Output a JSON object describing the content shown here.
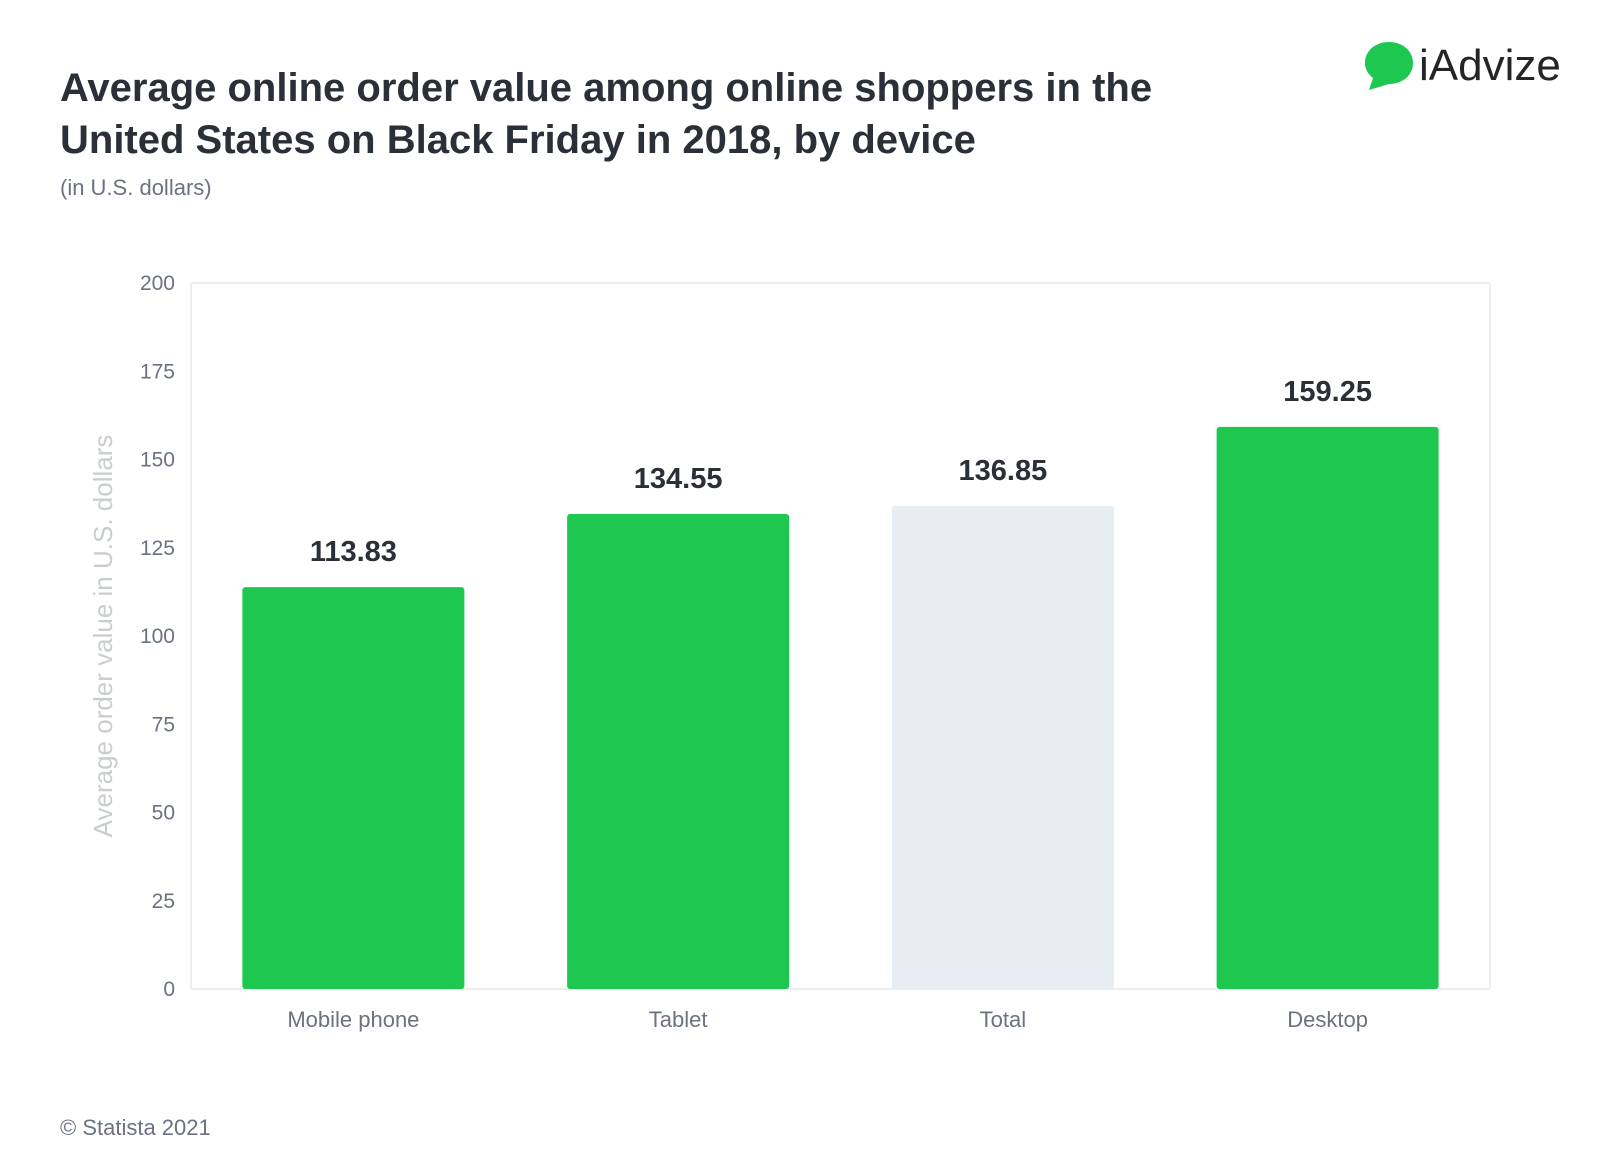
{
  "title": "Average online order value among online shoppers in the United States on Black Friday in 2018, by device",
  "subtitle": "(in U.S. dollars)",
  "brand": {
    "name": "iAdvize",
    "icon": "speech-bubble-icon",
    "color": "#1ec850"
  },
  "footer": "© Statista 2021",
  "colors": {
    "bar": "#1ec850",
    "bar_highlight": "#e8ecf3",
    "text": "#2b2f38",
    "axis": "#6b7280"
  },
  "chart_data": {
    "type": "bar",
    "categories": [
      "Mobile phone",
      "Tablet",
      "Total",
      "Desktop"
    ],
    "values": [
      113.83,
      134.55,
      136.85,
      159.25
    ],
    "value_labels": [
      "113.83",
      "134.55",
      "136.85",
      "159.25"
    ],
    "bar_colors": [
      "#1ec850",
      "#1ec850",
      "#e8ecf3",
      "#1ec850"
    ],
    "ylabel": "Average order value in U.S. dollars",
    "ylim": [
      0,
      200
    ],
    "yticks": [
      0,
      25,
      50,
      75,
      100,
      125,
      150,
      175,
      200
    ],
    "grid": false
  }
}
